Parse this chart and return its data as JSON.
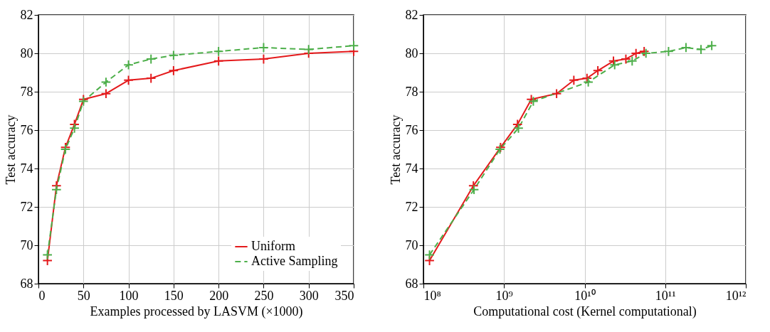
{
  "chart_data": [
    {
      "type": "line",
      "xlabel": "Examples processed by LASVM (×1000)",
      "ylabel": "Test accuracy",
      "xlim": [
        0,
        350
      ],
      "xticks": [
        0,
        50,
        100,
        150,
        200,
        250,
        300,
        350
      ],
      "ylim": [
        68,
        82
      ],
      "yticks": [
        68,
        70,
        72,
        74,
        76,
        78,
        80,
        82
      ],
      "grid": true,
      "legend": "bottom right",
      "marker": "cross",
      "series": [
        {
          "name": "Uniform",
          "color": "#e41a1c",
          "line_style": "solid",
          "x": [
            10,
            20,
            30,
            40,
            50,
            75,
            100,
            125,
            150,
            200,
            250,
            300,
            350
          ],
          "values": [
            69.2,
            73.1,
            75.1,
            76.3,
            77.6,
            77.9,
            78.6,
            78.7,
            79.1,
            79.6,
            79.7,
            80.0,
            80.1
          ]
        },
        {
          "name": "Active Sampling",
          "color": "#4daf4a",
          "line_style": "dashed",
          "x": [
            10,
            20,
            30,
            40,
            50,
            75,
            100,
            125,
            150,
            200,
            250,
            300,
            350
          ],
          "values": [
            69.5,
            72.9,
            75.0,
            76.1,
            77.5,
            78.5,
            79.4,
            79.7,
            79.9,
            80.1,
            80.3,
            80.2,
            80.4
          ]
        }
      ]
    },
    {
      "type": "line",
      "xlabel": "Computational cost (Kernel computational)",
      "ylabel": "Test accuracy",
      "log": "x",
      "xlim": [
        100000000,
        1000000000000
      ],
      "xticks": [
        {
          "value": 100000000,
          "label": "10⁸"
        },
        {
          "value": 1000000000,
          "label": "10⁹"
        },
        {
          "value": 10000000000,
          "label": "10¹⁰"
        },
        {
          "value": 100000000000,
          "label": "10¹¹"
        },
        {
          "value": 1000000000000,
          "label": "10¹²"
        }
      ],
      "ylim": [
        68,
        82
      ],
      "yticks": [
        68,
        70,
        72,
        74,
        76,
        78,
        80,
        82
      ],
      "grid": true,
      "marker": "cross",
      "series": [
        {
          "color": "#e41a1c",
          "line_style": "solid",
          "x": [
            119000000,
            417000000,
            906000000,
            1470000000,
            2180000000,
            4490000000,
            7350000000,
            10700000000,
            14600000000,
            22800000000,
            32500000000,
            43400000000,
            54800000000
          ],
          "values": [
            69.2,
            73.1,
            75.1,
            76.3,
            77.6,
            77.9,
            78.6,
            78.7,
            79.1,
            79.6,
            79.7,
            80.0,
            80.1
          ]
        },
        {
          "color": "#4daf4a",
          "line_style": "dashed",
          "x": [
            119000000,
            424000000,
            890000000,
            1510000000,
            2310000000,
            11100000000,
            23600000000,
            38900000000,
            57700000000,
            110000000000,
            181000000000,
            278000000000,
            378000000000
          ],
          "values": [
            69.5,
            72.9,
            75.0,
            76.1,
            77.5,
            78.5,
            79.4,
            79.6,
            80.0,
            80.1,
            80.3,
            80.2,
            80.4
          ]
        }
      ]
    }
  ]
}
